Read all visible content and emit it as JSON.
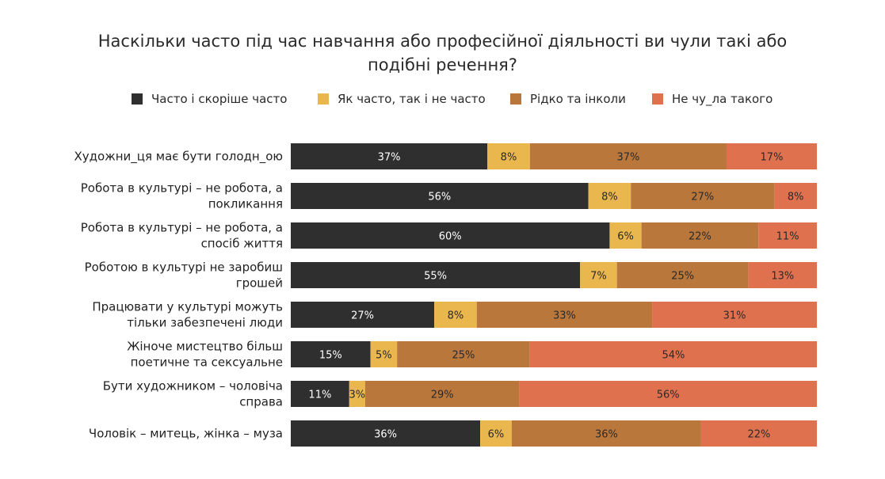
{
  "title": {
    "line1": "Наскільки часто під час навчання або професійної діяльності ви чули такі або",
    "line2": "подібні речення?"
  },
  "colors": {
    "often": "#2f2f2f",
    "sometimes": "#eab64e",
    "rarely": "#b9773b",
    "never": "#e0714f",
    "text_on_dark": "#ffffff",
    "text_on_light": "#2a2a2a"
  },
  "legend": [
    {
      "label": "Часто і скоріше часто",
      "color_key": "often"
    },
    {
      "label": "Як часто, так і не часто",
      "color_key": "sometimes"
    },
    {
      "label": "Рідко та інколи",
      "color_key": "rarely"
    },
    {
      "label": "Не чу_ла такого",
      "color_key": "never"
    }
  ],
  "chart_data": {
    "type": "bar",
    "orientation": "horizontal",
    "stacked": true,
    "normalized": true,
    "title": "Наскільки часто під час навчання або професійної діяльності ви чули такі або подібні речення?",
    "categories": [
      [
        "Художни_ця має бути голодн_ою"
      ],
      [
        "Робота в культурі – не робота, а",
        "покликання"
      ],
      [
        "Робота в культурі – не робота, а",
        "спосіб життя"
      ],
      [
        "Роботою в культурі не заробиш",
        "грошей"
      ],
      [
        "Працювати у культурі можуть",
        "тільки забезпечені люди"
      ],
      [
        "Жіноче мистецтво більш",
        "поетичне та сексуальне"
      ],
      [
        "Бути художником – чоловіча",
        "справа"
      ],
      [
        "Чоловік – митець, жінка – муза"
      ]
    ],
    "series": [
      {
        "name": "Часто і скоріше часто",
        "color_key": "often",
        "values": [
          37,
          56,
          60,
          55,
          27,
          15,
          11,
          36
        ]
      },
      {
        "name": "Як часто, так і не часто",
        "color_key": "sometimes",
        "values": [
          8,
          8,
          6,
          7,
          8,
          5,
          3,
          6
        ]
      },
      {
        "name": "Рідко та інколи",
        "color_key": "rarely",
        "values": [
          37,
          27,
          22,
          25,
          33,
          25,
          29,
          36
        ]
      },
      {
        "name": "Не чу_ла такого",
        "color_key": "never",
        "values": [
          17,
          8,
          11,
          13,
          31,
          54,
          56,
          22
        ]
      }
    ],
    "value_suffix": "%",
    "legend_position": "top",
    "grid": false
  }
}
